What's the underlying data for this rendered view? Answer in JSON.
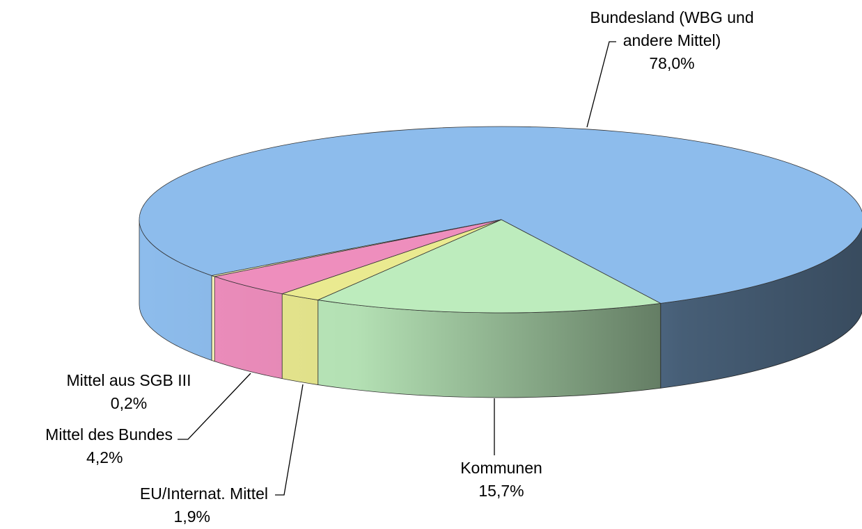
{
  "chart_data": {
    "type": "pie3d",
    "categories": [
      "Bundesland (WBG und andere Mittel)",
      "Kommunen",
      "EU/Internat. Mittel",
      "Mittel des Bundes",
      "Mittel aus SGB III"
    ],
    "values": [
      78.0,
      15.7,
      1.9,
      4.2,
      0.2
    ],
    "value_labels": [
      "78,0%",
      "15,7%",
      "1,9%",
      "4,2%",
      "0,2%"
    ],
    "colors": [
      "#8dbcec",
      "#bdecbd",
      "#eaea90",
      "#ee8ebd",
      "#ffffc0"
    ]
  }
}
